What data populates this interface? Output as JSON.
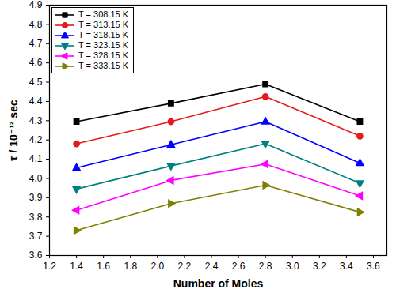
{
  "chart_data": {
    "type": "line",
    "x_label": "Number of Moles",
    "y_label": "τ / 10⁻¹² sec",
    "x": [
      1.4,
      2.1,
      2.8,
      3.5
    ],
    "series": [
      {
        "name": "T = 308.15 K",
        "color": "#000000",
        "marker": "square",
        "values": [
          4.295,
          4.39,
          4.49,
          4.295
        ]
      },
      {
        "name": "T = 313.15 K",
        "color": "#e41a1c",
        "marker": "circle",
        "values": [
          4.18,
          4.295,
          4.425,
          4.22
        ]
      },
      {
        "name": "T = 318.15 K",
        "color": "#0000ff",
        "marker": "triangle-up",
        "values": [
          4.055,
          4.175,
          4.295,
          4.08
        ]
      },
      {
        "name": "T = 323.15 K",
        "color": "#008080",
        "marker": "triangle-down",
        "values": [
          3.945,
          4.065,
          4.18,
          3.975
        ]
      },
      {
        "name": "T = 328.15 K",
        "color": "#ff00ff",
        "marker": "triangle-left",
        "values": [
          3.835,
          3.99,
          4.075,
          3.91
        ]
      },
      {
        "name": "T = 333.15 K",
        "color": "#808000",
        "marker": "triangle-right",
        "values": [
          3.73,
          3.87,
          3.965,
          3.825
        ]
      }
    ],
    "xlim": [
      1.2,
      3.7
    ],
    "xticks": [
      1.2,
      1.4,
      1.6,
      1.8,
      {
        "value": 2,
        "label": "2.0"
      },
      2.2,
      2.4,
      2.6,
      2.8,
      {
        "value": 3,
        "label": "3.0"
      },
      3.2,
      3.4,
      3.6
    ],
    "ylim": [
      3.6,
      4.9
    ],
    "yticks": [
      3.6,
      3.7,
      3.8,
      3.9,
      {
        "value": 4,
        "label": "4.0"
      },
      4.1,
      4.2,
      4.3,
      4.4,
      4.5,
      4.6,
      4.7,
      4.8,
      4.9
    ],
    "grid": false,
    "legend": "upper left"
  }
}
